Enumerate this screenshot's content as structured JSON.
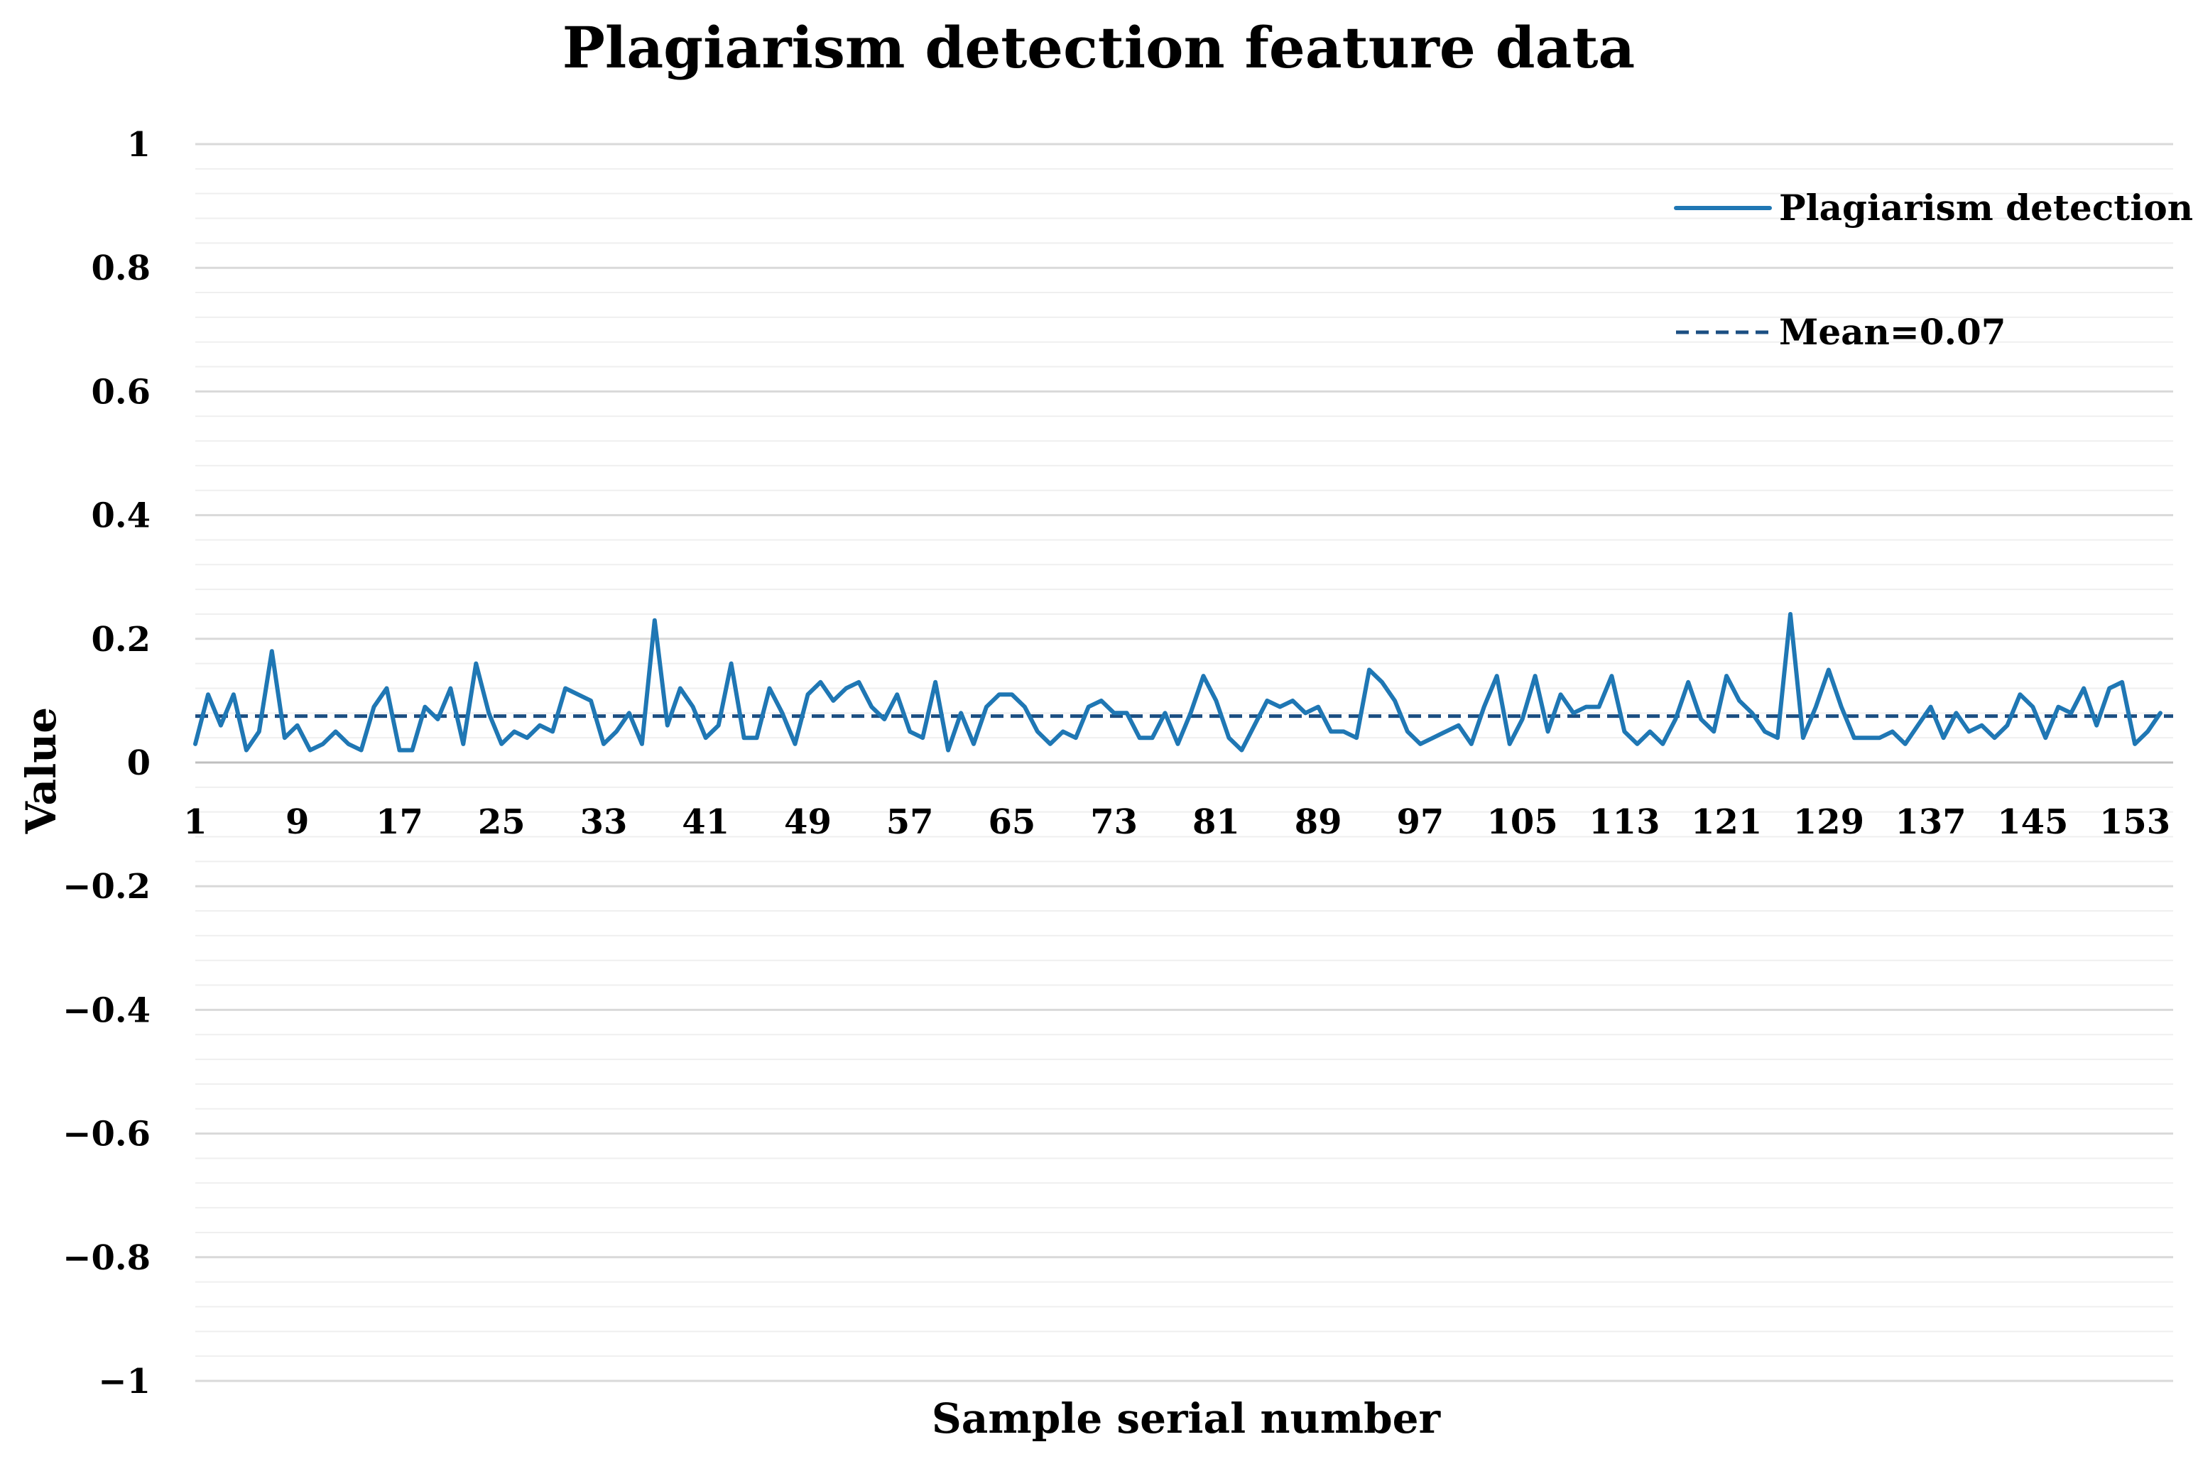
{
  "chart_data": {
    "type": "line",
    "title": "Plagiarism detection feature data",
    "xlabel": "Sample serial number",
    "ylabel": "Value",
    "ylim": [
      -1,
      1
    ],
    "y_major_step": 0.2,
    "y_minor_step": 0.04,
    "y_tick_labels": [
      "1",
      "0.8",
      "0.6",
      "0.4",
      "0.2",
      "0",
      "−0.2",
      "−0.4",
      "−0.6",
      "−0.8",
      "−1"
    ],
    "y_tick_values": [
      1,
      0.8,
      0.6,
      0.4,
      0.2,
      0,
      -0.2,
      -0.4,
      -0.6,
      -0.8,
      -1
    ],
    "x_range": [
      1,
      156
    ],
    "x_tick_labels": [
      "1",
      "9",
      "17",
      "25",
      "33",
      "41",
      "49",
      "57",
      "65",
      "73",
      "81",
      "89",
      "97",
      "105",
      "113",
      "121",
      "129",
      "137",
      "145",
      "153"
    ],
    "x_tick_values": [
      1,
      9,
      17,
      25,
      33,
      41,
      49,
      57,
      65,
      73,
      81,
      89,
      97,
      105,
      113,
      121,
      129,
      137,
      145,
      153
    ],
    "grid": true,
    "legend_position": "top-right",
    "series": [
      {
        "name": "Plagiarism detection",
        "style": "solid",
        "color": "#1f77b4",
        "values": [
          0.03,
          0.11,
          0.06,
          0.11,
          0.02,
          0.05,
          0.18,
          0.04,
          0.06,
          0.02,
          0.03,
          0.05,
          0.03,
          0.02,
          0.09,
          0.12,
          0.02,
          0.02,
          0.09,
          0.07,
          0.12,
          0.03,
          0.16,
          0.08,
          0.03,
          0.05,
          0.04,
          0.06,
          0.05,
          0.12,
          0.11,
          0.1,
          0.03,
          0.05,
          0.08,
          0.03,
          0.23,
          0.06,
          0.12,
          0.09,
          0.04,
          0.06,
          0.16,
          0.04,
          0.04,
          0.12,
          0.08,
          0.03,
          0.11,
          0.13,
          0.1,
          0.12,
          0.13,
          0.09,
          0.07,
          0.11,
          0.05,
          0.04,
          0.13,
          0.02,
          0.08,
          0.03,
          0.09,
          0.11,
          0.11,
          0.09,
          0.05,
          0.03,
          0.05,
          0.04,
          0.09,
          0.1,
          0.08,
          0.08,
          0.04,
          0.04,
          0.08,
          0.03,
          0.08,
          0.14,
          0.1,
          0.04,
          0.02,
          0.06,
          0.1,
          0.09,
          0.1,
          0.08,
          0.09,
          0.05,
          0.05,
          0.04,
          0.15,
          0.13,
          0.1,
          0.05,
          0.03,
          0.04,
          0.05,
          0.06,
          0.03,
          0.09,
          0.14,
          0.03,
          0.07,
          0.14,
          0.05,
          0.11,
          0.08,
          0.09,
          0.09,
          0.14,
          0.05,
          0.03,
          0.05,
          0.03,
          0.07,
          0.13,
          0.07,
          0.05,
          0.14,
          0.1,
          0.08,
          0.05,
          0.04,
          0.24,
          0.04,
          0.09,
          0.15,
          0.09,
          0.04,
          0.04,
          0.04,
          0.05,
          0.03,
          0.06,
          0.09,
          0.04,
          0.08,
          0.05,
          0.06,
          0.04,
          0.06,
          0.11,
          0.09,
          0.04,
          0.09,
          0.08,
          0.12,
          0.06,
          0.12,
          0.13,
          0.03,
          0.05,
          0.08
        ]
      },
      {
        "name": "Mean=0.07",
        "style": "dashed",
        "color": "#1b4f82",
        "constant": 0.075
      }
    ]
  }
}
